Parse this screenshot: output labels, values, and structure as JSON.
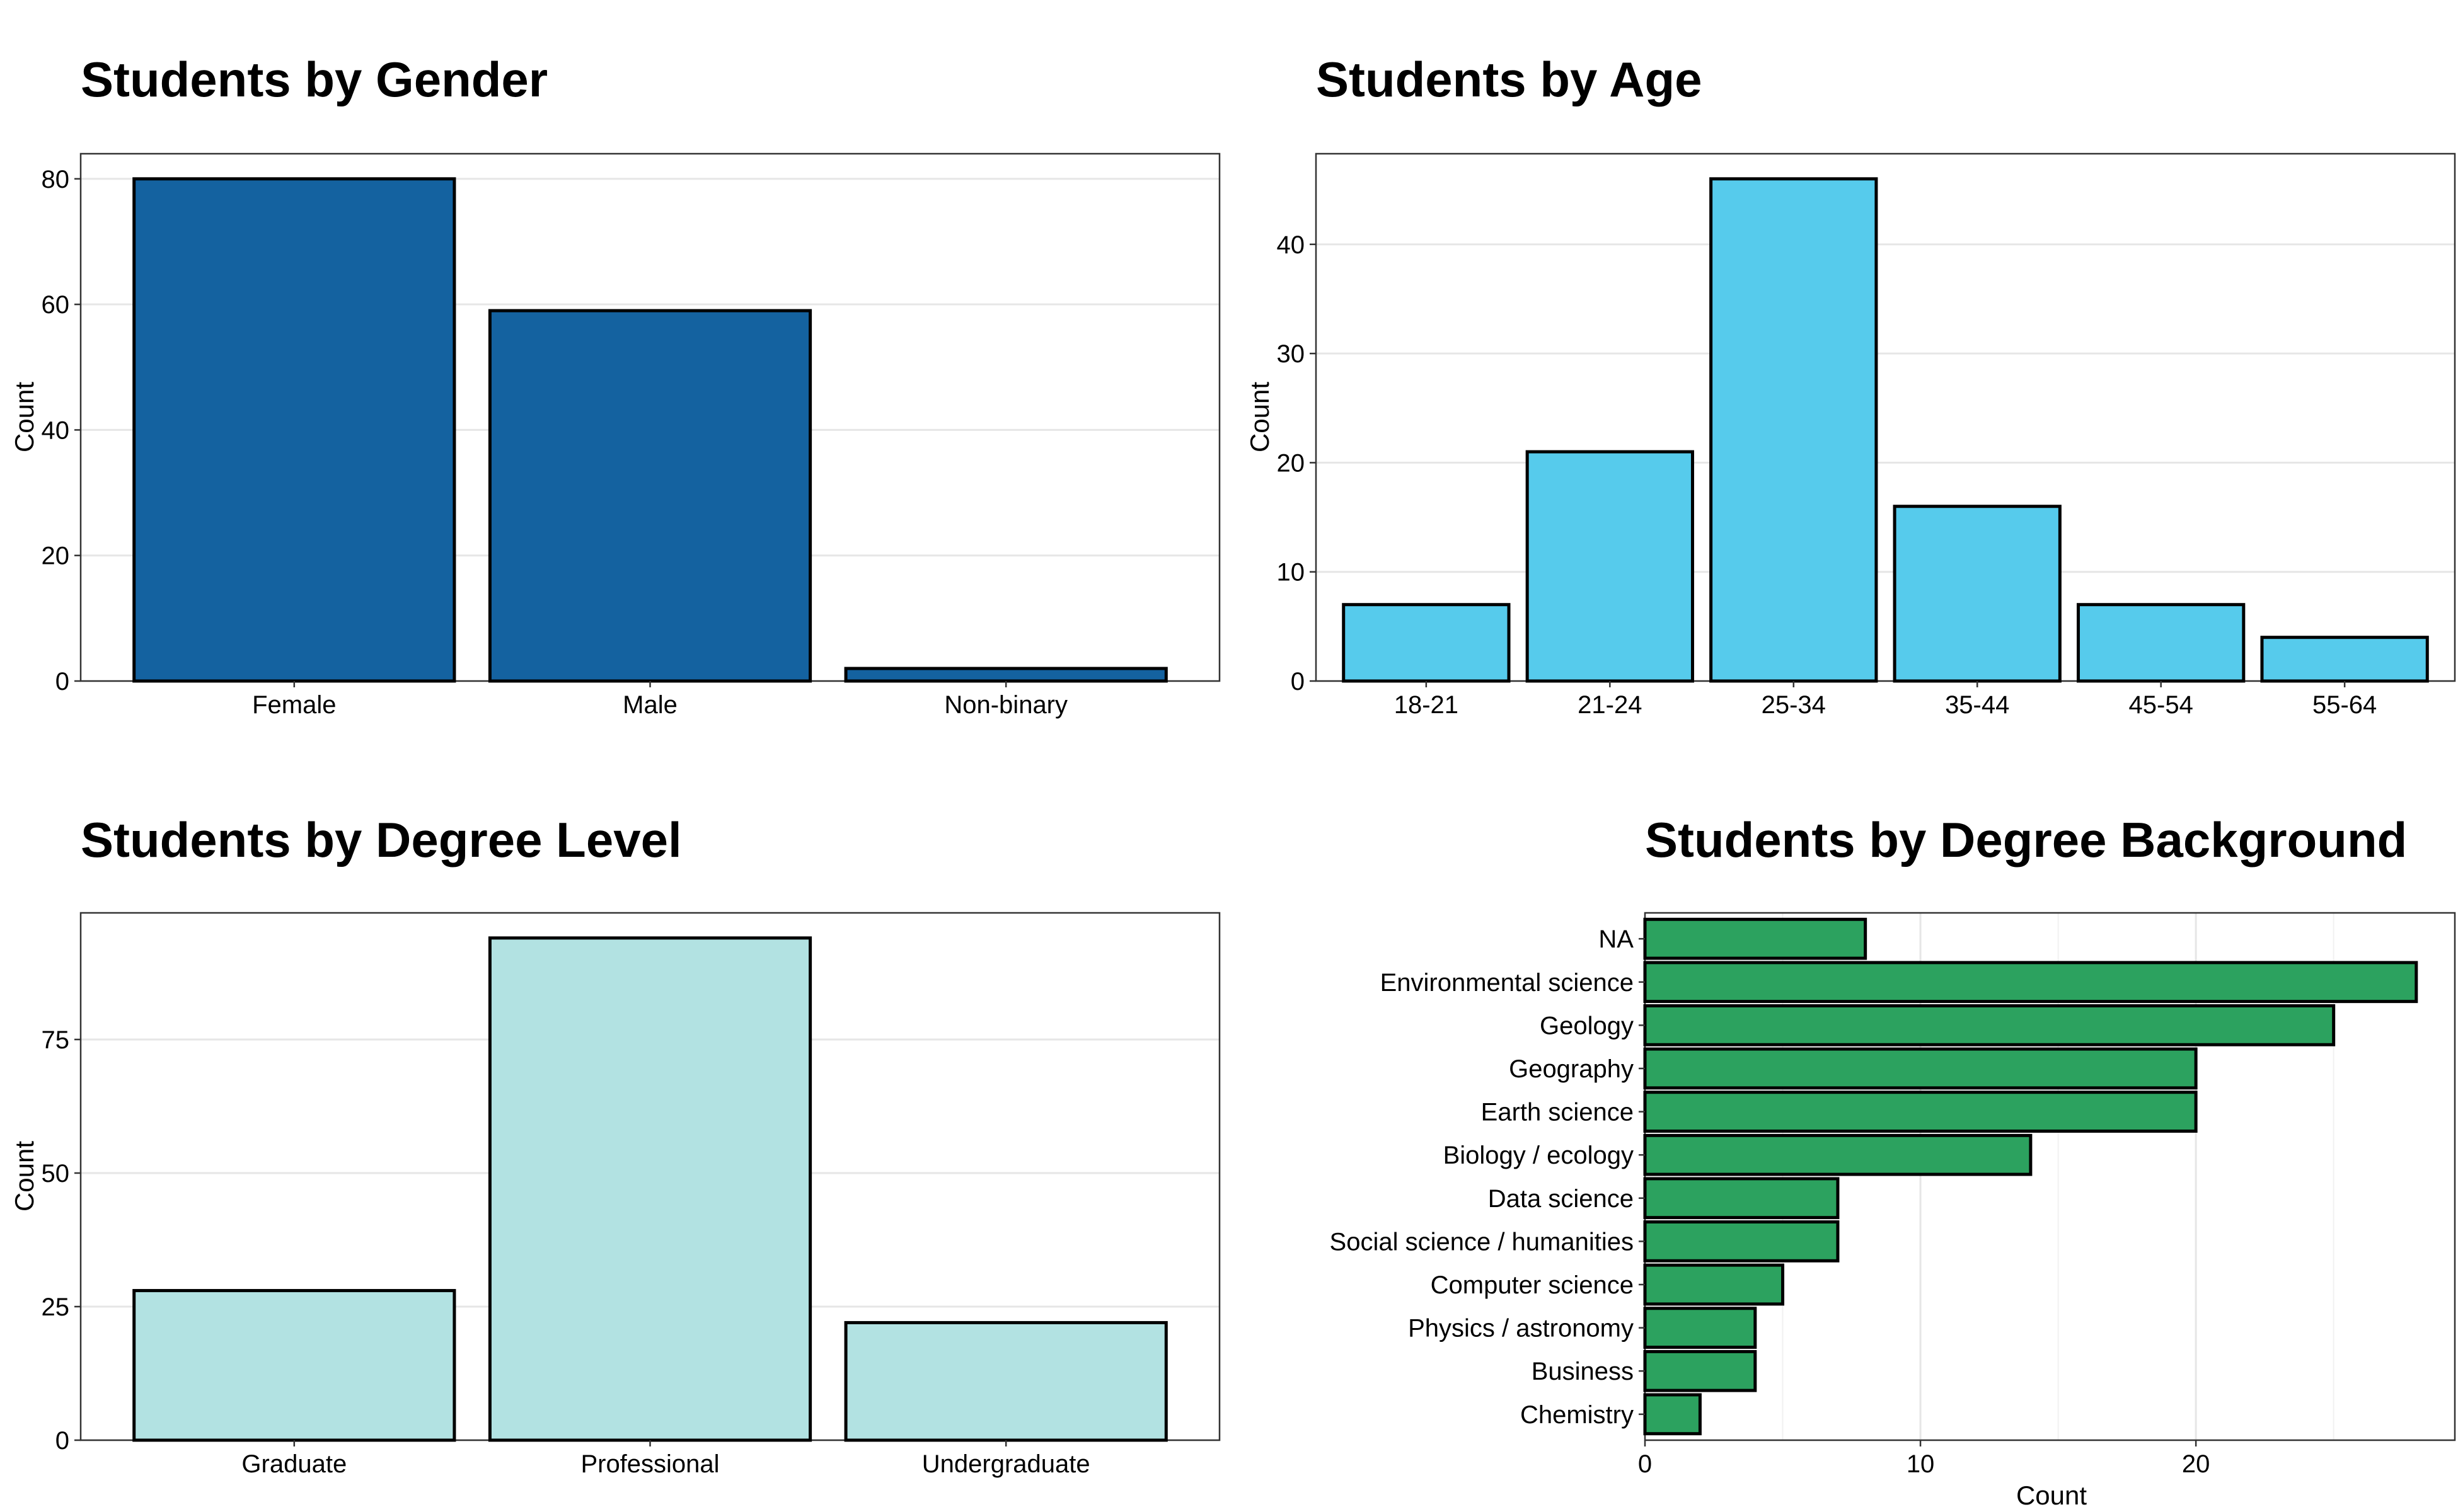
{
  "chart_data": [
    {
      "id": "gender",
      "type": "bar",
      "orientation": "vertical",
      "title": "Students by Gender",
      "xlabel": "",
      "ylabel": "Count",
      "categories": [
        "Female",
        "Male",
        "Non-binary"
      ],
      "values": [
        80,
        59,
        2
      ],
      "ylim": [
        0,
        84
      ],
      "yticks": [
        0,
        20,
        40,
        60,
        80
      ],
      "color": "#1462A0",
      "grid": true,
      "legend": "none"
    },
    {
      "id": "age",
      "type": "bar",
      "orientation": "vertical",
      "title": "Students by Age",
      "xlabel": "",
      "ylabel": "Count",
      "categories": [
        "18-21",
        "21-24",
        "25-34",
        "35-44",
        "45-54",
        "55-64"
      ],
      "values": [
        7,
        21,
        46,
        16,
        7,
        4
      ],
      "ylim": [
        0,
        48.3
      ],
      "yticks": [
        0,
        10,
        20,
        30,
        40
      ],
      "color": "#56CBEC",
      "grid": true,
      "legend": "none"
    },
    {
      "id": "degree-level",
      "type": "bar",
      "orientation": "vertical",
      "title": "Students by Degree Level",
      "xlabel": "",
      "ylabel": "Count",
      "categories": [
        "Graduate",
        "Professional",
        "Undergraduate"
      ],
      "values": [
        28,
        94,
        22
      ],
      "ylim": [
        0,
        98.7
      ],
      "yticks": [
        0,
        25,
        50,
        75
      ],
      "color": "#B2E2E2",
      "grid": true,
      "legend": "none"
    },
    {
      "id": "degree-background",
      "type": "bar",
      "orientation": "horizontal",
      "title": "Students by Degree Background",
      "xlabel": "Count",
      "ylabel": "",
      "categories": [
        "NA",
        "Environmental science",
        "Geology",
        "Geography",
        "Earth science",
        "Biology / ecology",
        "Data science",
        "Social science / humanities",
        "Computer science",
        "Physics / astronomy",
        "Business",
        "Chemistry"
      ],
      "values": [
        8,
        28,
        25,
        20,
        20,
        14,
        7,
        7,
        5,
        4,
        4,
        2
      ],
      "xlim": [
        0,
        29.4
      ],
      "xticks": [
        0,
        10,
        20
      ],
      "color": "#2CA25F",
      "grid": true,
      "legend": "none"
    }
  ]
}
